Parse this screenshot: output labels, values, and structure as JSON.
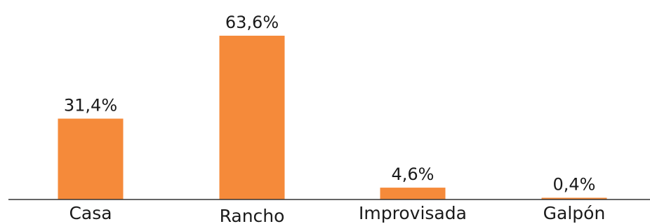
{
  "chart_data": {
    "type": "bar",
    "categories": [
      "Casa",
      "Rancho",
      "Improvisada",
      "Galpón"
    ],
    "values": [
      31.4,
      63.6,
      4.6,
      0.4
    ],
    "value_labels": [
      "31,4%",
      "63,6%",
      "4,6%",
      "0,4%"
    ],
    "title": "",
    "xlabel": "",
    "ylabel": "",
    "ylim": [
      0,
      63.6
    ],
    "grid": false,
    "legend": "none",
    "bar_color": "#F58A3A",
    "axis_color": "#333333"
  }
}
